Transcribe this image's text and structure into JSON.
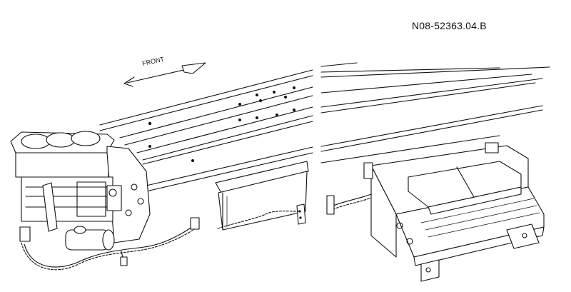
{
  "figure": {
    "reference_code": "N08-52363.04.B",
    "direction_label": "FRONT"
  }
}
